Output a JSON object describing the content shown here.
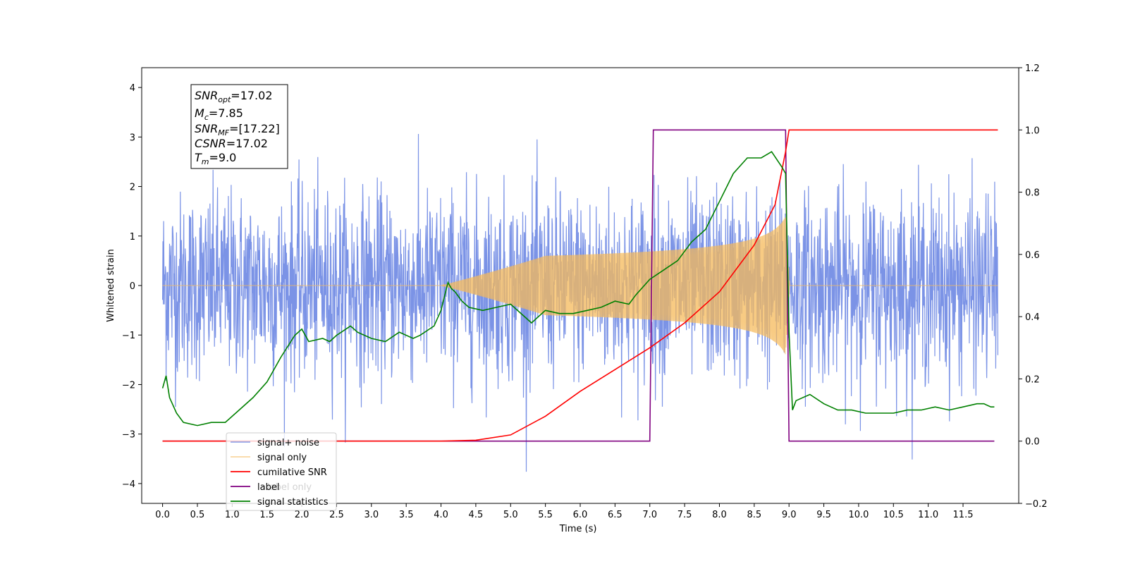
{
  "chart_data": {
    "type": "line",
    "xlabel": "Time (s)",
    "ylabel": "Whitened strain",
    "x_ticks": [
      "0.0",
      "0.5",
      "1.0",
      "1.5",
      "2.0",
      "2.5",
      "3.0",
      "3.5",
      "4.0",
      "4.5",
      "5.0",
      "5.5",
      "6.0",
      "6.5",
      "7.0",
      "7.5",
      "8.0",
      "8.5",
      "9.0",
      "9.5",
      "10.0",
      "10.5",
      "11.0",
      "11.5"
    ],
    "y_ticks_left": [
      "4",
      "3",
      "2",
      "1",
      "0",
      "−1",
      "−2",
      "−3",
      "−4"
    ],
    "y_ticks_right": [
      "1.2",
      "1.0",
      "0.8",
      "0.6",
      "0.4",
      "0.2",
      "0.0",
      "−0.2"
    ],
    "xlim": [
      -0.3,
      12.3
    ],
    "ylim_left": [
      -4.4,
      4.4
    ],
    "ylim_right": [
      -0.2,
      1.2
    ],
    "annotation": {
      "snr_opt": {
        "label": "SNR",
        "sub": "opt",
        "value": "=17.02"
      },
      "mc": {
        "label": "M",
        "sub": "c",
        "value": "=7.85"
      },
      "snr_mf": {
        "label": "SNR",
        "sub": "MF",
        "value": "=[17.22]"
      },
      "csnr": {
        "label": "CSNR",
        "value": "=17.02"
      },
      "tm": {
        "label": "T",
        "sub": "m",
        "value": "=9.0"
      }
    },
    "legend_position": "lower-left",
    "series": [
      {
        "name": "signal+ noise",
        "axis": "left",
        "color": "#7b93e6",
        "noise_amplitude": 1.1,
        "extent": [
          0.0,
          12.0
        ]
      },
      {
        "name": "signal only",
        "axis": "left",
        "color": "#f5b95a",
        "chirp_start": 4.0,
        "chirp_peak_time": 8.95,
        "peak_amplitude": 1.4
      },
      {
        "name": "cumilative SNR",
        "axis": "right",
        "color": "#ff0000",
        "x": [
          0.0,
          4.0,
          4.5,
          5.0,
          5.5,
          6.0,
          6.5,
          7.0,
          7.5,
          8.0,
          8.5,
          8.8,
          8.95,
          9.0,
          12.0
        ],
        "y": [
          0.0,
          0.0,
          0.003,
          0.02,
          0.08,
          0.16,
          0.23,
          0.3,
          0.38,
          0.48,
          0.63,
          0.76,
          0.93,
          1.0,
          1.0
        ]
      },
      {
        "name": "label",
        "axis": "right",
        "color": "#800080",
        "x": [
          0.0,
          7.0,
          7.05,
          8.95,
          9.0,
          11.95
        ],
        "y": [
          0.0,
          0.0,
          1.0,
          1.0,
          0.0,
          0.0
        ]
      },
      {
        "name": "label only",
        "axis": "right",
        "color": "#800080",
        "hidden": true,
        "x": [],
        "y": []
      },
      {
        "name": "signal statistics",
        "axis": "right",
        "color": "#008000",
        "x": [
          0.0,
          0.05,
          0.1,
          0.2,
          0.3,
          0.5,
          0.7,
          0.9,
          1.1,
          1.3,
          1.5,
          1.7,
          1.9,
          2.0,
          2.1,
          2.3,
          2.4,
          2.5,
          2.7,
          2.8,
          3.0,
          3.2,
          3.4,
          3.6,
          3.7,
          3.9,
          4.0,
          4.1,
          4.15,
          4.2,
          4.3,
          4.4,
          4.6,
          4.8,
          5.0,
          5.2,
          5.3,
          5.5,
          5.7,
          5.9,
          6.1,
          6.3,
          6.5,
          6.7,
          6.8,
          7.0,
          7.2,
          7.4,
          7.6,
          7.8,
          8.0,
          8.2,
          8.4,
          8.6,
          8.75,
          8.9,
          8.95,
          9.0,
          9.05,
          9.1,
          9.3,
          9.5,
          9.7,
          9.9,
          10.1,
          10.3,
          10.5,
          10.7,
          10.9,
          11.1,
          11.3,
          11.5,
          11.7,
          11.8,
          11.9,
          11.95
        ],
        "y": [
          0.17,
          0.21,
          0.14,
          0.09,
          0.06,
          0.05,
          0.06,
          0.06,
          0.1,
          0.14,
          0.19,
          0.27,
          0.34,
          0.36,
          0.32,
          0.33,
          0.32,
          0.34,
          0.37,
          0.35,
          0.33,
          0.32,
          0.35,
          0.33,
          0.34,
          0.37,
          0.42,
          0.51,
          0.49,
          0.48,
          0.45,
          0.43,
          0.42,
          0.43,
          0.44,
          0.4,
          0.38,
          0.42,
          0.41,
          0.41,
          0.42,
          0.43,
          0.45,
          0.44,
          0.47,
          0.52,
          0.55,
          0.58,
          0.64,
          0.68,
          0.77,
          0.86,
          0.91,
          0.91,
          0.93,
          0.88,
          0.86,
          0.35,
          0.1,
          0.13,
          0.15,
          0.12,
          0.1,
          0.1,
          0.09,
          0.09,
          0.09,
          0.1,
          0.1,
          0.11,
          0.1,
          0.11,
          0.12,
          0.12,
          0.11,
          0.11
        ]
      }
    ]
  }
}
